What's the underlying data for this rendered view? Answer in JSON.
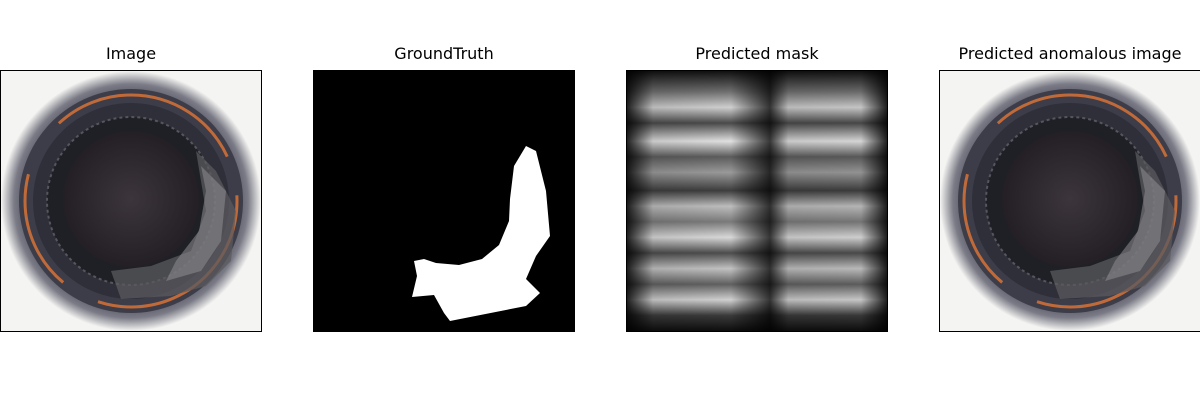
{
  "panels": [
    {
      "title": "Image"
    },
    {
      "title": "GroundTruth"
    },
    {
      "title": "Predicted mask"
    },
    {
      "title": "Predicted anomalous image"
    }
  ],
  "colors": {
    "background": "#ffffff",
    "frame_border": "#000000",
    "mask_fill": "#ffffff",
    "mask_background": "#000000"
  }
}
